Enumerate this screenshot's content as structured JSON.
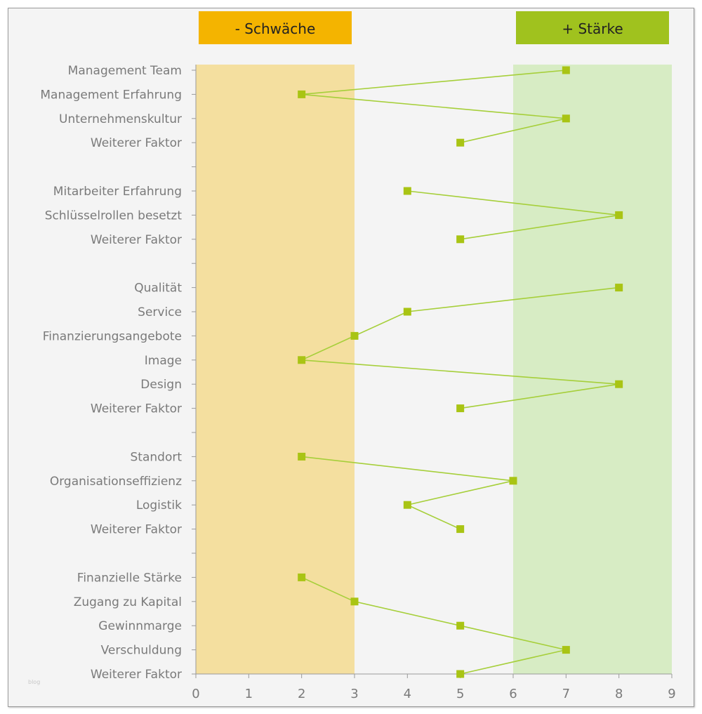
{
  "chart_data": {
    "type": "line",
    "orientation": "horizontal",
    "zones": [
      {
        "label": "- Schwäche",
        "from": 0,
        "to": 3,
        "header_color": "#f4b400",
        "band_color": "#f4df9f"
      },
      {
        "label": "+ Stärke",
        "from": 6,
        "to": 9,
        "header_color": "#a0c21e",
        "band_color": "#d7ecc4"
      }
    ],
    "categories": [
      "Management Team",
      "Management Erfahrung",
      "Unternehmenskultur",
      "Weiterer Faktor",
      "",
      "Mitarbeiter Erfahrung",
      "Schlüsselrollen besetzt",
      "Weiterer Faktor",
      "",
      "Qualität",
      "Service",
      "Finanzierungsangebote",
      "Image",
      "Design",
      "Weiterer Faktor",
      "",
      "Standort",
      "Organisationseffizienz",
      "Logistik",
      "Weiterer Faktor",
      "",
      "Finanzielle Stärke",
      "Zugang zu Kapital",
      "Gewinnmarge",
      "Verschuldung",
      "Weiterer Faktor"
    ],
    "values": [
      7,
      2,
      7,
      5,
      null,
      4,
      8,
      5,
      null,
      8,
      4,
      3,
      2,
      8,
      5,
      null,
      2,
      6,
      4,
      5,
      null,
      2,
      3,
      5,
      7,
      5
    ],
    "xlim": [
      0,
      9
    ],
    "xticks": [
      0,
      1,
      2,
      3,
      4,
      5,
      6,
      7,
      8,
      9
    ],
    "line_color": "#a6cf3a",
    "marker_color": "#a9c414"
  },
  "watermark": "blog"
}
